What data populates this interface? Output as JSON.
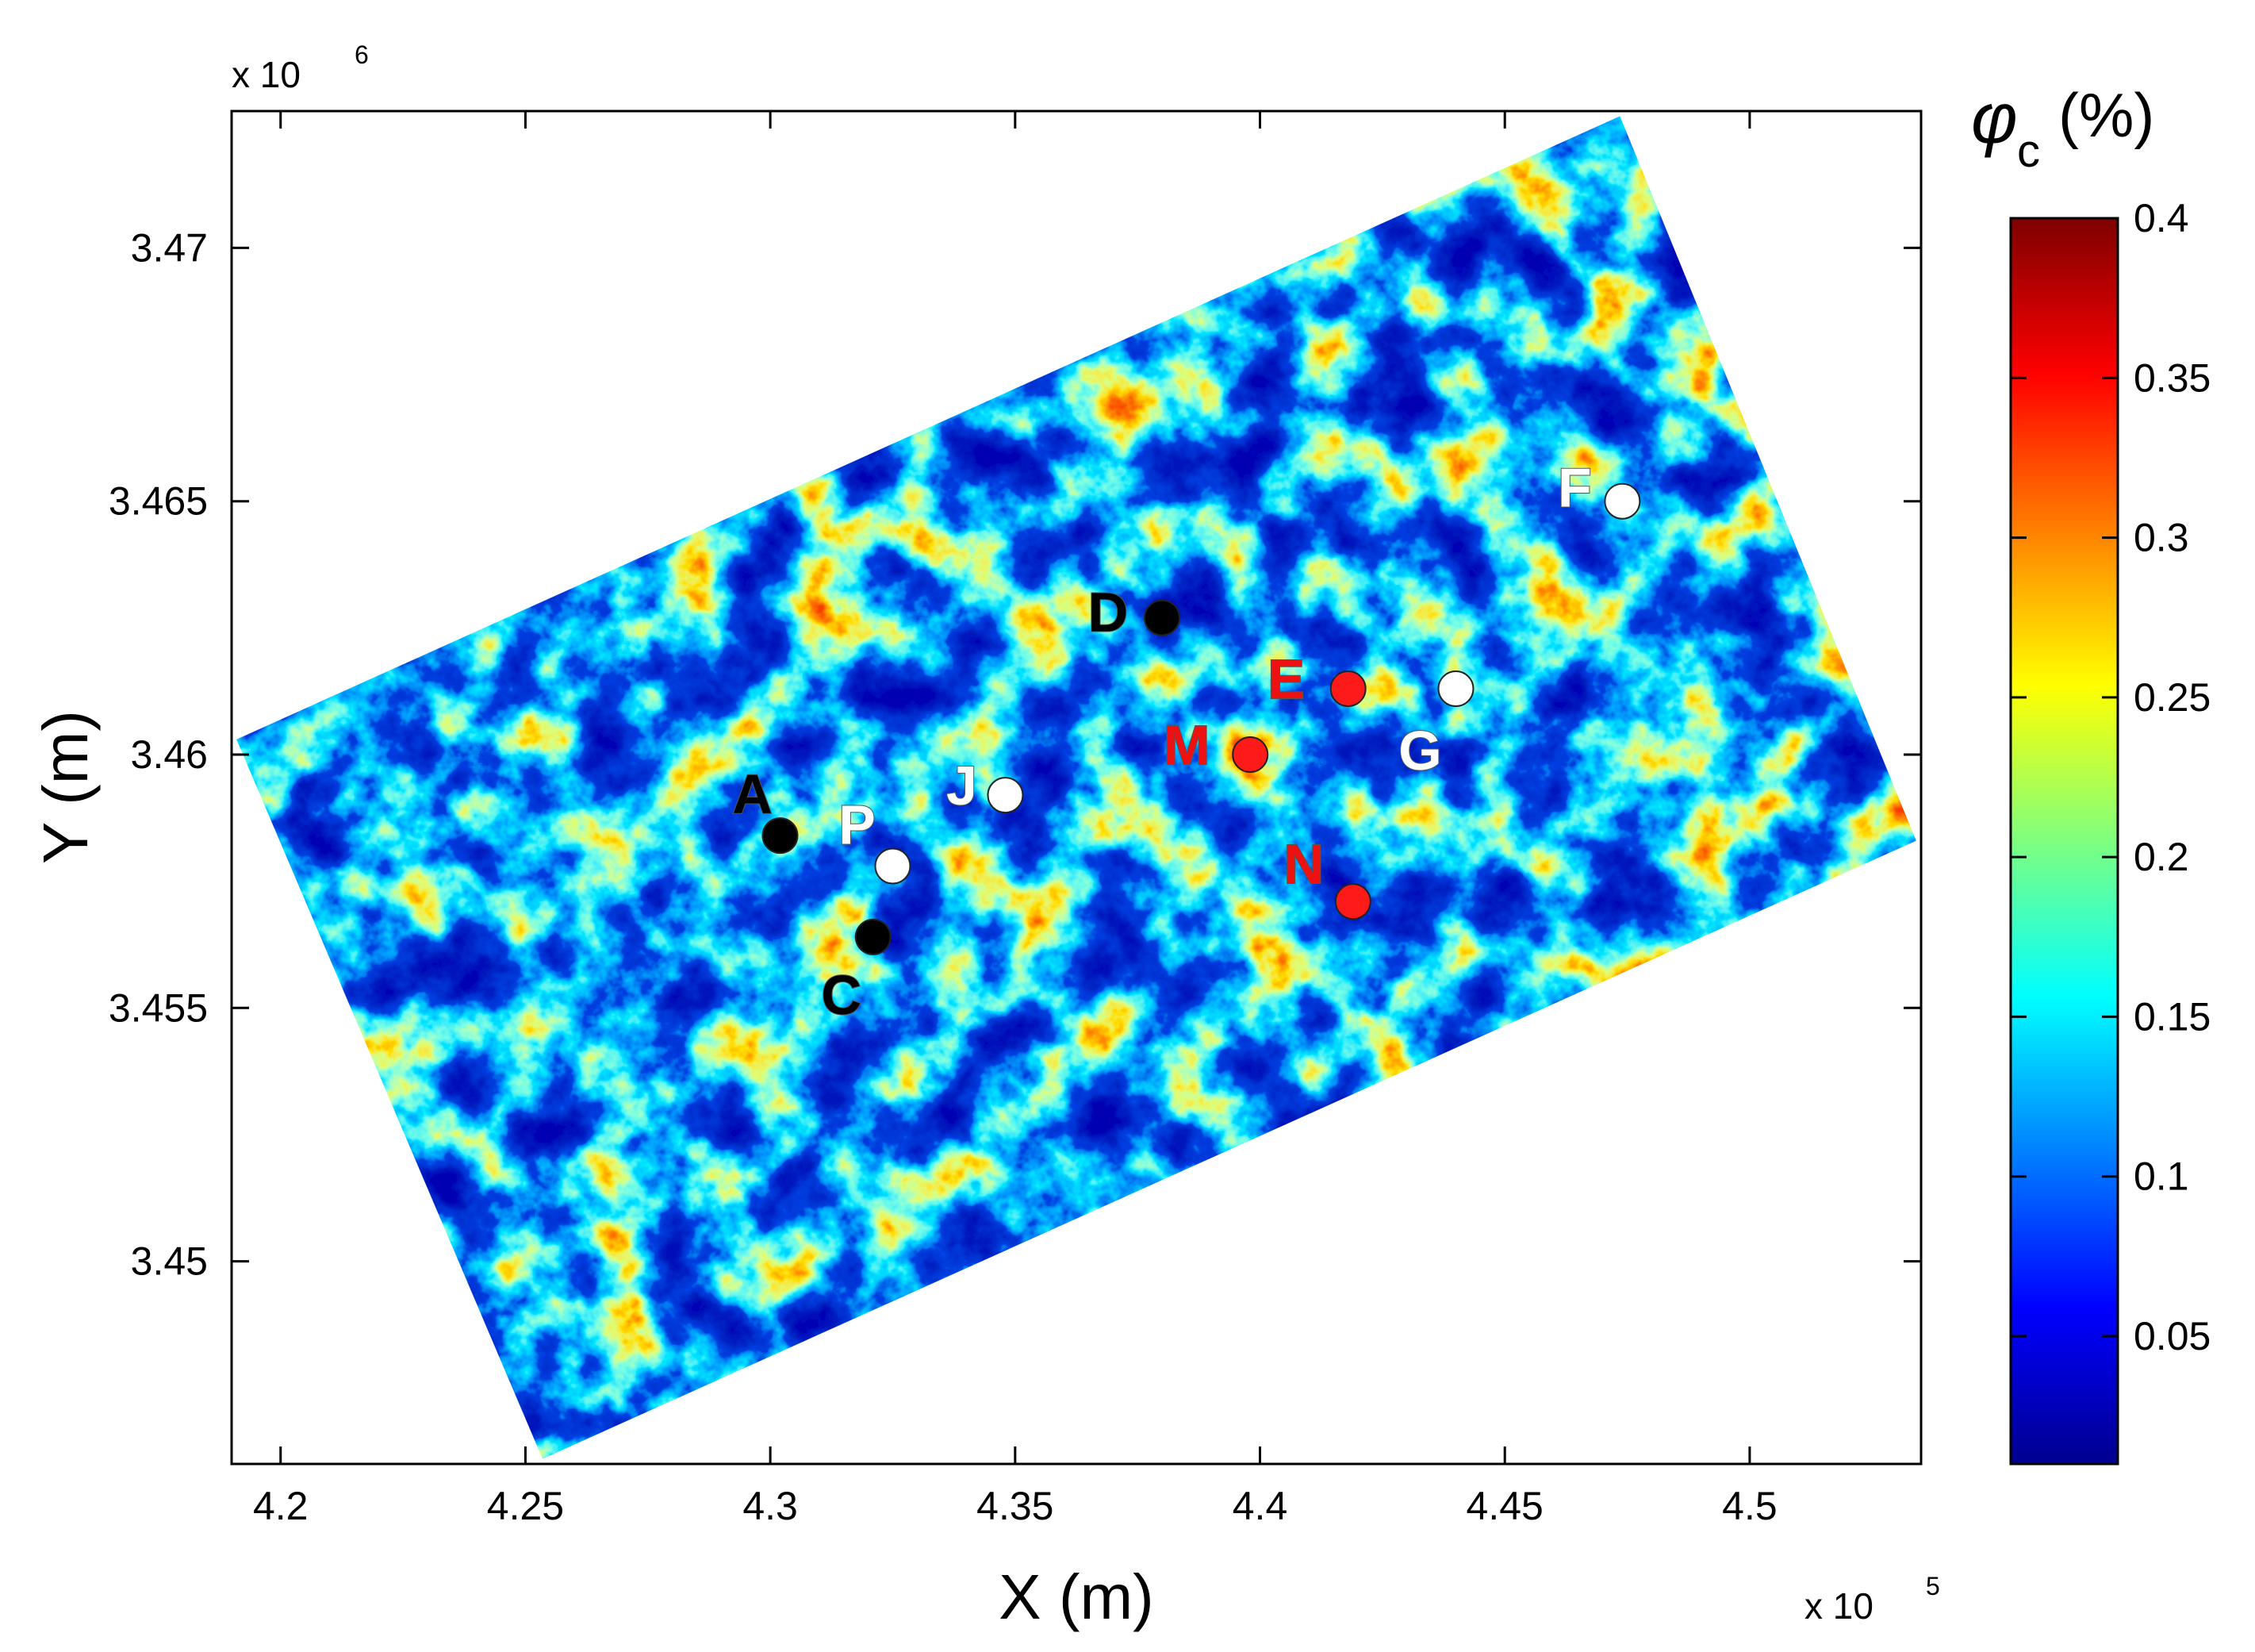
{
  "chart_data": {
    "type": "heatmap",
    "title": "",
    "xlabel": "X (m)",
    "ylabel": "Y (m)",
    "x_multiplier_label": "x 10",
    "x_multiplier_exp": "5",
    "y_multiplier_label": "x 10",
    "y_multiplier_exp": "6",
    "x_ticks": [
      4.2,
      4.25,
      4.3,
      4.35,
      4.4,
      4.45,
      4.5
    ],
    "x_tick_labels": [
      "4.2",
      "4.25",
      "4.3",
      "4.35",
      "4.4",
      "4.45",
      "4.5"
    ],
    "y_ticks": [
      3.45,
      3.455,
      3.46,
      3.465,
      3.47
    ],
    "y_tick_labels": [
      "3.45",
      "3.455",
      "3.46",
      "3.465",
      "3.47"
    ],
    "xlim": [
      4.19,
      4.535
    ],
    "ylim": [
      3.446,
      3.4727
    ],
    "grid": false,
    "colorbar": {
      "label_symbol": "φ",
      "label_sub": "c",
      "label_unit": "(%)",
      "colormap": "jet",
      "range": [
        0.01,
        0.4
      ],
      "ticks": [
        0.05,
        0.1,
        0.15,
        0.2,
        0.25,
        0.3,
        0.35,
        0.4
      ],
      "tick_labels": [
        "0.05",
        "0.1",
        "0.15",
        "0.2",
        "0.25",
        "0.3",
        "0.35",
        "0.4"
      ]
    },
    "domain_corners": [
      [
        4.191,
        3.4603
      ],
      [
        4.4735,
        3.4726
      ],
      [
        4.534,
        3.4583
      ],
      [
        4.2535,
        3.4461
      ]
    ],
    "points": [
      {
        "label": "A",
        "x": 4.302,
        "y": 3.4584,
        "color": "#000000",
        "label_color": "#000000",
        "label_dx": -35,
        "label_dy": -50
      },
      {
        "label": "P",
        "x": 4.325,
        "y": 3.4578,
        "color": "#ffffff",
        "label_color": "#ffffff",
        "label_dx": -45,
        "label_dy": -50
      },
      {
        "label": "C",
        "x": 4.321,
        "y": 3.4564,
        "color": "#000000",
        "label_color": "#000000",
        "label_dx": -40,
        "label_dy": 75
      },
      {
        "label": "J",
        "x": 4.348,
        "y": 3.4592,
        "color": "#ffffff",
        "label_color": "#ffffff",
        "label_dx": -55,
        "label_dy": -10
      },
      {
        "label": "D",
        "x": 4.38,
        "y": 3.4627,
        "color": "#000000",
        "label_color": "#000000",
        "label_dx": -68,
        "label_dy": -5
      },
      {
        "label": "E",
        "x": 4.418,
        "y": 3.4613,
        "color": "#ff1a1a",
        "label_color": "#ee1111",
        "label_dx": -78,
        "label_dy": -10
      },
      {
        "label": "M",
        "x": 4.398,
        "y": 3.46,
        "color": "#ff1a1a",
        "label_color": "#ee1111",
        "label_dx": -80,
        "label_dy": -10
      },
      {
        "label": "G",
        "x": 4.44,
        "y": 3.4613,
        "color": "#ffffff",
        "label_color": "#ffffff",
        "label_dx": -45,
        "label_dy": 80
      },
      {
        "label": "N",
        "x": 4.419,
        "y": 3.4571,
        "color": "#ff1a1a",
        "label_color": "#ee1111",
        "label_dx": -62,
        "label_dy": -45
      },
      {
        "label": "F",
        "x": 4.474,
        "y": 3.465,
        "color": "#ffffff",
        "label_color": "#ffffff",
        "label_dx": -60,
        "label_dy": -15
      }
    ]
  },
  "colors": {
    "axis": "#000000",
    "background": "#ffffff"
  }
}
